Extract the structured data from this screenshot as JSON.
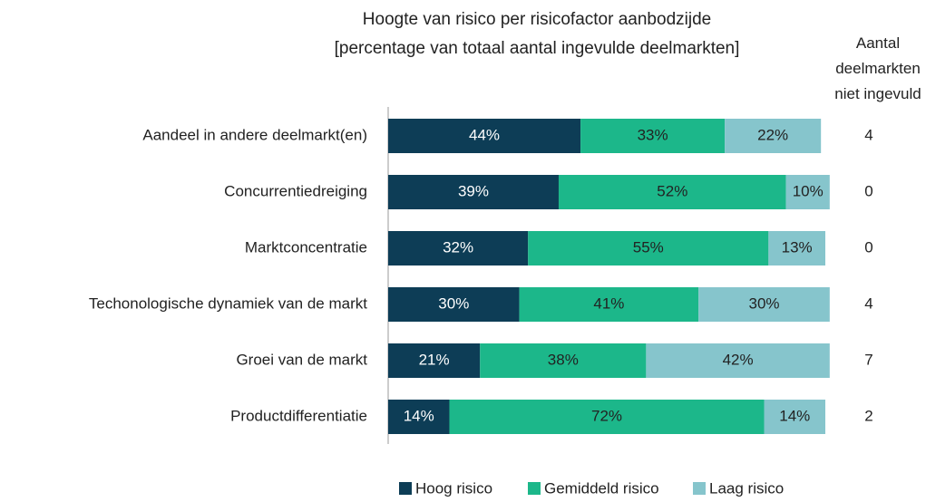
{
  "chart_data": {
    "type": "stacked_barh",
    "title": "Hoogte van risico per risicofactor aanbodzijde",
    "subtitle": "[percentage van totaal aantal ingevulde deelmarkten]",
    "categories": [
      "Aandeel in andere deelmarkt(en)",
      "Concurrentiedreiging",
      "Marktconcentratie",
      "Techonologische dynamiek van de markt",
      "Groei van de markt",
      "Productdifferentiatie"
    ],
    "series": [
      {
        "name": "Hoog risico",
        "color": "#0d3d56",
        "values": [
          44,
          39,
          32,
          30,
          21,
          14
        ],
        "value_labels": [
          "44%",
          "39%",
          "32%",
          "30%",
          "21%",
          "14%"
        ]
      },
      {
        "name": "Gemiddeld risico",
        "color": "#1cb78a",
        "values": [
          33,
          52,
          55,
          41,
          38,
          72
        ],
        "value_labels": [
          "33%",
          "52%",
          "55%",
          "41%",
          "38%",
          "72%"
        ]
      },
      {
        "name": "Laag risico",
        "color": "#86c5cc",
        "values": [
          22,
          10,
          13,
          30,
          42,
          14
        ],
        "value_labels": [
          "22%",
          "10%",
          "13%",
          "30%",
          "42%",
          "14%"
        ]
      }
    ],
    "xlim": [
      0,
      100
    ],
    "legend": "bottom",
    "right_column": {
      "title": "Aantal deelmarkten niet ingevuld",
      "values": [
        4,
        0,
        0,
        4,
        7,
        2
      ]
    }
  }
}
